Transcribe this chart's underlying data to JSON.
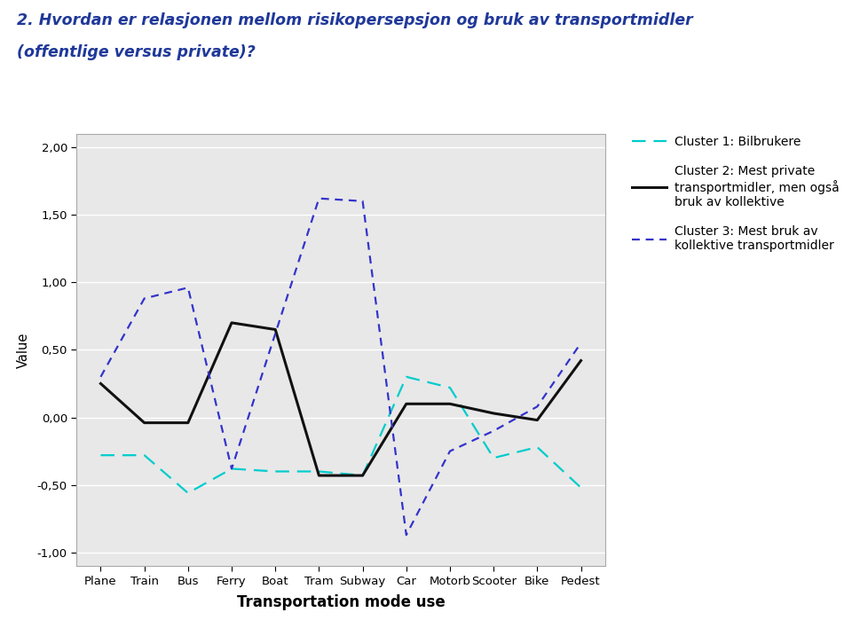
{
  "title_line1": "2. Hvordan er relasjonen mellom risikopersepsjon og bruk av transportmidler",
  "title_line2": "(offentlige versus private)?",
  "xlabel": "Transportation mode use",
  "ylabel": "Value",
  "categories": [
    "Plane",
    "Train",
    "Bus",
    "Ferry",
    "Boat",
    "Tram",
    "Subway",
    "Car",
    "Motorb",
    "Scooter",
    "Bike",
    "Pedest"
  ],
  "cluster1": [
    -0.28,
    -0.28,
    -0.56,
    -0.38,
    -0.4,
    -0.4,
    -0.43,
    0.3,
    0.22,
    -0.3,
    -0.22,
    -0.52
  ],
  "cluster2": [
    0.25,
    -0.04,
    -0.04,
    0.7,
    0.65,
    -0.43,
    -0.43,
    0.1,
    0.1,
    0.03,
    -0.02,
    0.42
  ],
  "cluster3": [
    0.3,
    0.88,
    0.96,
    -0.38,
    0.62,
    1.62,
    1.6,
    -0.87,
    -0.25,
    -0.1,
    0.08,
    0.55
  ],
  "ylim": [
    -1.1,
    2.1
  ],
  "yticks": [
    -1.0,
    -0.5,
    0.0,
    0.5,
    1.0,
    1.5,
    2.0
  ],
  "cluster1_color": "#00cccc",
  "cluster2_color": "#111111",
  "cluster3_color": "#3333cc",
  "plot_bg": "#e8e8e8",
  "fig_bg": "#ffffff",
  "title_color": "#1F3899",
  "legend1": "Cluster 1: Bilbrukere",
  "legend2": "Cluster 2: Mest private\ntransportmidler, men også\nbruk av kollektive",
  "legend3": "Cluster 3: Mest bruk av\nkollektive transportmidler"
}
